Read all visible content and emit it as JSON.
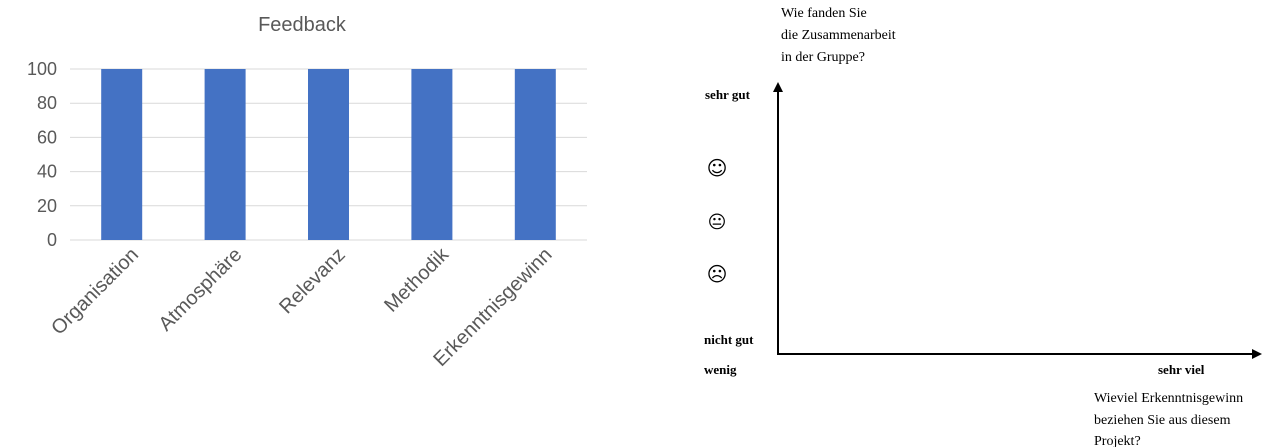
{
  "chart_data": {
    "type": "bar",
    "title": "Feedback",
    "categories": [
      "Organisation",
      "Atmosphäre",
      "Relevanz",
      "Methodik",
      "Erkenntnisgewinn"
    ],
    "series": [
      {
        "values": [
          100,
          100,
          100,
          100,
          100
        ]
      }
    ],
    "ylim": [
      0,
      100
    ],
    "yticks": [
      "0",
      "20",
      "40",
      "60",
      "80",
      "100"
    ],
    "grid": true,
    "legend": "none",
    "bar_color": "#4472C4"
  },
  "diagram": {
    "y_question": [
      "Wie fanden Sie",
      "die Zusammenarbeit",
      "in der Gruppe?"
    ],
    "y_top_label": "sehr gut",
    "y_bottom_label": "nicht gut",
    "x_left_label": "wenig",
    "x_right_label": "sehr viel",
    "x_question": [
      "Wieviel Erkenntnisgewinn",
      "beziehen Sie aus diesem",
      "Projekt?"
    ],
    "faces": [
      "☺",
      "😐",
      "☹"
    ]
  }
}
